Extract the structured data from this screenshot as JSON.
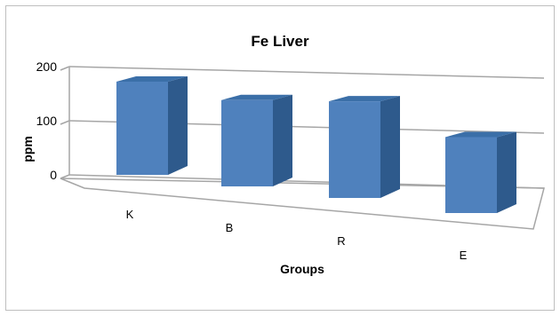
{
  "chart_data": {
    "type": "bar",
    "title": "Fe Liver",
    "xlabel": "Groups",
    "ylabel": "ppm",
    "categories": [
      "K",
      "B",
      "R",
      "E"
    ],
    "values": [
      135,
      125,
      140,
      110
    ],
    "ylim": [
      0,
      200
    ],
    "yticks": [
      "0",
      "100",
      "200"
    ],
    "style": "3d-column",
    "grid": true,
    "legend": "none",
    "colors": {
      "front": "#4F81BD",
      "side": "#2E5A8C",
      "top": "#3B6FA8",
      "grid": "#A6A6A6",
      "frame": "#C0C0C0"
    }
  }
}
